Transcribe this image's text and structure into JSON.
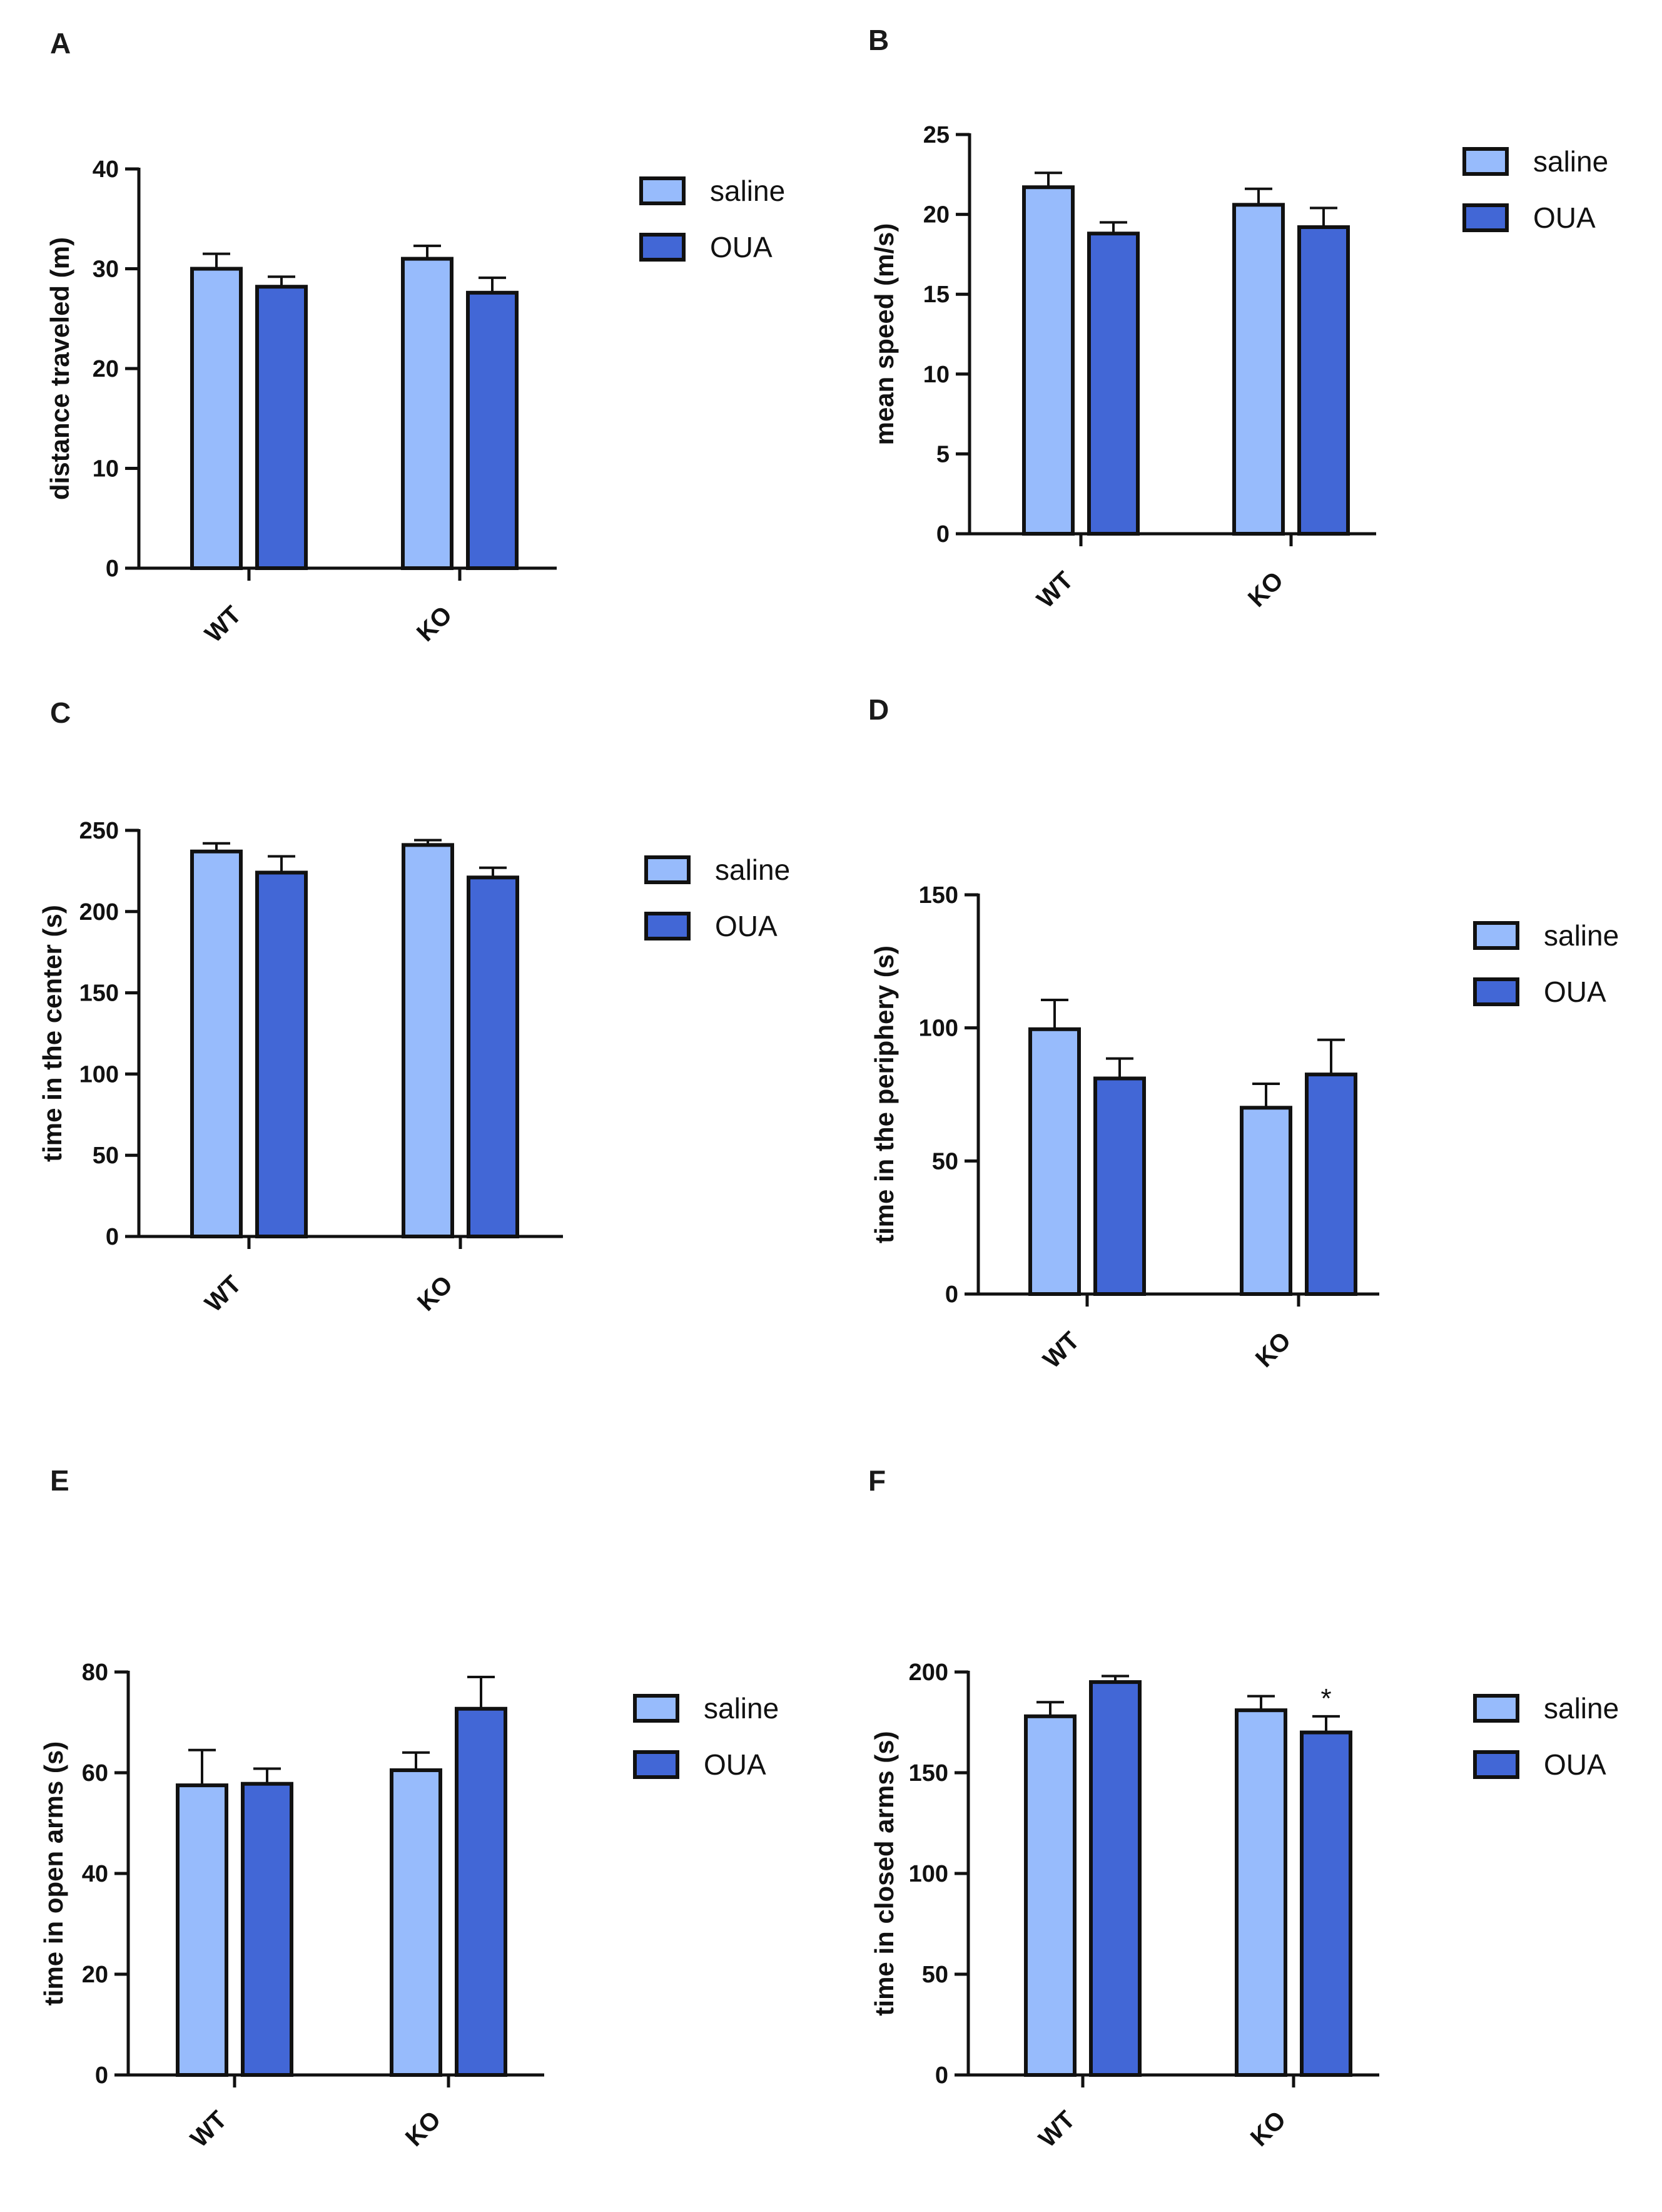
{
  "colors": {
    "saline": "#97bbfc",
    "OUA": "#4267d6",
    "outline": "#111111"
  },
  "chart_data": [
    {
      "panel": "A",
      "type": "bar",
      "categories": [
        "WT",
        "KO"
      ],
      "series": [
        {
          "name": "saline",
          "values": [
            30,
            31
          ],
          "errors": [
            1.5,
            1.3
          ]
        },
        {
          "name": "OUA",
          "values": [
            28.2,
            27.6
          ],
          "errors": [
            1.0,
            1.5
          ]
        }
      ],
      "xlabel": "",
      "ylabel": "distance traveled (m)",
      "ylim": [
        0,
        40
      ],
      "yticks": [
        0,
        10,
        20,
        30,
        40
      ],
      "annotations": [],
      "legend": "top-right"
    },
    {
      "panel": "B",
      "type": "bar",
      "categories": [
        "WT",
        "KO"
      ],
      "series": [
        {
          "name": "saline",
          "values": [
            21.7,
            20.6
          ],
          "errors": [
            0.9,
            1.0
          ]
        },
        {
          "name": "OUA",
          "values": [
            18.8,
            19.2
          ],
          "errors": [
            0.7,
            1.2
          ]
        }
      ],
      "xlabel": "",
      "ylabel": "mean speed (m/s)",
      "ylim": [
        0,
        25
      ],
      "yticks": [
        0,
        5,
        10,
        15,
        20,
        25
      ],
      "annotations": [],
      "legend": "top-right"
    },
    {
      "panel": "C",
      "type": "bar",
      "categories": [
        "WT",
        "KO"
      ],
      "series": [
        {
          "name": "saline",
          "values": [
            237,
            241
          ],
          "errors": [
            5,
            3
          ]
        },
        {
          "name": "OUA",
          "values": [
            224,
            221
          ],
          "errors": [
            10,
            6
          ]
        }
      ],
      "xlabel": "",
      "ylabel": "time in the center (s)",
      "ylim": [
        0,
        250
      ],
      "yticks": [
        0,
        50,
        100,
        150,
        200,
        250
      ],
      "annotations": [],
      "legend": "top-right"
    },
    {
      "panel": "D",
      "type": "bar",
      "categories": [
        "WT",
        "KO"
      ],
      "series": [
        {
          "name": "saline",
          "values": [
            99.5,
            70
          ],
          "errors": [
            11,
            9
          ]
        },
        {
          "name": "OUA",
          "values": [
            81,
            82.5
          ],
          "errors": [
            7.5,
            13
          ]
        }
      ],
      "xlabel": "",
      "ylabel": "time in the periphery (s)",
      "ylim": [
        0,
        150
      ],
      "yticks": [
        0,
        50,
        100,
        150
      ],
      "annotations": [],
      "legend": "top-right"
    },
    {
      "panel": "E",
      "type": "bar",
      "categories": [
        "WT",
        "KO"
      ],
      "series": [
        {
          "name": "saline",
          "values": [
            57.5,
            60.5
          ],
          "errors": [
            7,
            3.5
          ]
        },
        {
          "name": "OUA",
          "values": [
            57.8,
            72.7
          ],
          "errors": [
            3,
            6.3
          ]
        }
      ],
      "xlabel": "",
      "ylabel": "time in open arms (s)",
      "ylim": [
        0,
        80
      ],
      "yticks": [
        0,
        20,
        40,
        60,
        80
      ],
      "annotations": [],
      "legend": "top-right"
    },
    {
      "panel": "F",
      "type": "bar",
      "categories": [
        "WT",
        "KO"
      ],
      "series": [
        {
          "name": "saline",
          "values": [
            178,
            181
          ],
          "errors": [
            7,
            7
          ]
        },
        {
          "name": "OUA",
          "values": [
            195,
            170
          ],
          "errors": [
            3,
            8
          ]
        }
      ],
      "xlabel": "",
      "ylabel": "time in closed arms (s)",
      "ylim": [
        0,
        200
      ],
      "yticks": [
        0,
        50,
        100,
        150,
        200
      ],
      "annotations": [
        {
          "text": "*",
          "category": "KO",
          "series": "OUA"
        }
      ],
      "legend": "top-right"
    }
  ]
}
